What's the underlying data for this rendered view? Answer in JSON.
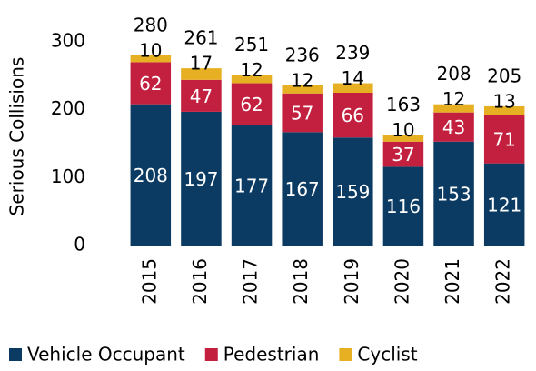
{
  "chart_data": {
    "type": "stacked_bar",
    "ylabel": "Serious Collisions",
    "categories": [
      "2015",
      "2016",
      "2017",
      "2018",
      "2019",
      "2020",
      "2021",
      "2022"
    ],
    "series": [
      {
        "name": "Vehicle Occupant",
        "color": "#0b3b63",
        "label_color": "#ffffff",
        "values": [
          208,
          197,
          177,
          167,
          159,
          116,
          153,
          121
        ]
      },
      {
        "name": "Pedestrian",
        "color": "#c3203f",
        "label_color": "#ffffff",
        "values": [
          62,
          47,
          62,
          57,
          66,
          37,
          43,
          71
        ]
      },
      {
        "name": "Cyclist",
        "color": "#e6b022",
        "label_color": "#000000",
        "values": [
          10,
          17,
          12,
          12,
          14,
          10,
          12,
          13
        ]
      }
    ],
    "totals": [
      280,
      261,
      251,
      236,
      239,
      163,
      208,
      205
    ],
    "ylim": [
      0,
      300
    ],
    "yticks": [
      0,
      100,
      200,
      300
    ],
    "grid": false
  }
}
